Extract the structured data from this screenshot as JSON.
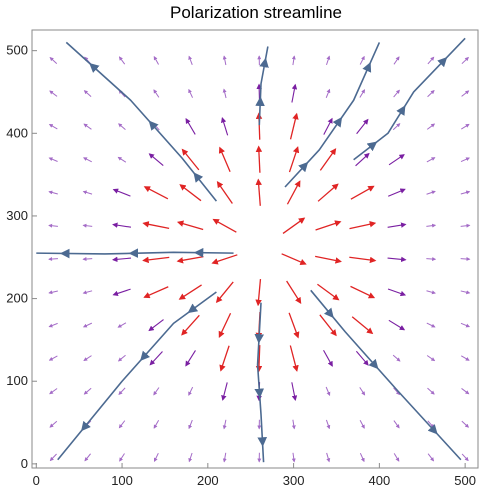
{
  "chart_data": {
    "type": "vector-field",
    "title": "Polarization streamline",
    "xlim": [
      -5,
      515
    ],
    "ylim": [
      -5,
      525
    ],
    "xticks": [
      0,
      100,
      200,
      300,
      400,
      500
    ],
    "yticks": [
      0,
      100,
      200,
      300,
      400,
      500
    ],
    "center": [
      265,
      263
    ],
    "field_grid": {
      "x_start": 20,
      "x_step": 40,
      "x_count": 13,
      "y_start": 8,
      "y_step": 40,
      "y_count": 13
    },
    "colors": {
      "strong_arrow": "#e02424",
      "weak_arrow": "#7a1fa2",
      "faint_arrow": "#a46cc7",
      "streamline": "#4c6a91"
    },
    "streamlines": [
      {
        "name": "to-upper-left",
        "points": [
          [
            210,
            318
          ],
          [
            170,
            370
          ],
          [
            110,
            440
          ],
          [
            35,
            510
          ]
        ]
      },
      {
        "name": "to-up",
        "points": [
          [
            260,
            410
          ],
          [
            262,
            460
          ],
          [
            270,
            505
          ]
        ]
      },
      {
        "name": "to-upper-right",
        "points": [
          [
            290,
            335
          ],
          [
            330,
            380
          ],
          [
            370,
            440
          ],
          [
            400,
            510
          ]
        ]
      },
      {
        "name": "to-right-high",
        "points": [
          [
            370,
            368
          ],
          [
            410,
            400
          ],
          [
            440,
            450
          ],
          [
            500,
            515
          ]
        ]
      },
      {
        "name": "to-left",
        "points": [
          [
            230,
            255
          ],
          [
            160,
            256
          ],
          [
            80,
            254
          ],
          [
            0,
            255
          ]
        ]
      },
      {
        "name": "to-lower-left",
        "points": [
          [
            210,
            208
          ],
          [
            160,
            170
          ],
          [
            100,
            100
          ],
          [
            25,
            5
          ]
        ]
      },
      {
        "name": "to-down",
        "points": [
          [
            262,
            195
          ],
          [
            258,
            120
          ],
          [
            262,
            60
          ],
          [
            265,
            2
          ]
        ]
      },
      {
        "name": "to-lower-right",
        "points": [
          [
            320,
            210
          ],
          [
            360,
            160
          ],
          [
            420,
            90
          ],
          [
            495,
            5
          ]
        ]
      }
    ]
  }
}
